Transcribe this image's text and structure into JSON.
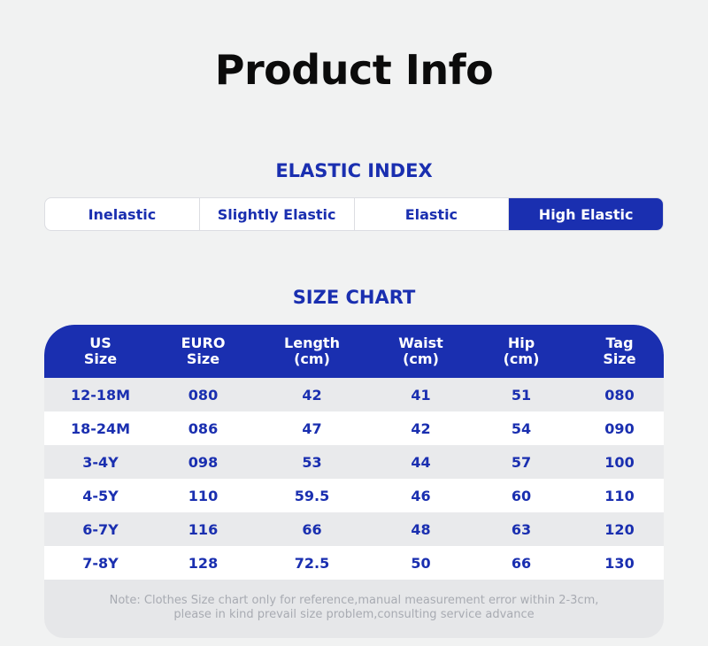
{
  "title": "Product Info",
  "elastic_index": {
    "heading": "ELASTIC INDEX",
    "options": [
      "Inelastic",
      "Slightly Elastic",
      "Elastic",
      "High Elastic"
    ],
    "selected": "High Elastic"
  },
  "size_chart": {
    "heading": "SIZE CHART",
    "columns": [
      "US\nSize",
      "EURO\nSize",
      "Length\n(cm)",
      "Waist\n(cm)",
      "Hip\n(cm)",
      "Tag\nSize"
    ],
    "rows": [
      [
        "12-18M",
        "080",
        "42",
        "41",
        "51",
        "080"
      ],
      [
        "18-24M",
        "086",
        "47",
        "42",
        "54",
        "090"
      ],
      [
        "3-4Y",
        "098",
        "53",
        "44",
        "57",
        "100"
      ],
      [
        "4-5Y",
        "110",
        "59.5",
        "46",
        "60",
        "110"
      ],
      [
        "6-7Y",
        "116",
        "66",
        "48",
        "63",
        "120"
      ],
      [
        "7-8Y",
        "128",
        "72.5",
        "50",
        "66",
        "130"
      ]
    ],
    "note_line1": "Note: Clothes Size chart only for reference,manual measurement error within 2-3cm,",
    "note_line2": "please in kind prevail size problem,consulting service advance"
  },
  "colors": {
    "accent": "#1a2fb0",
    "background": "#f1f2f2",
    "title": "#0b0b0b"
  }
}
